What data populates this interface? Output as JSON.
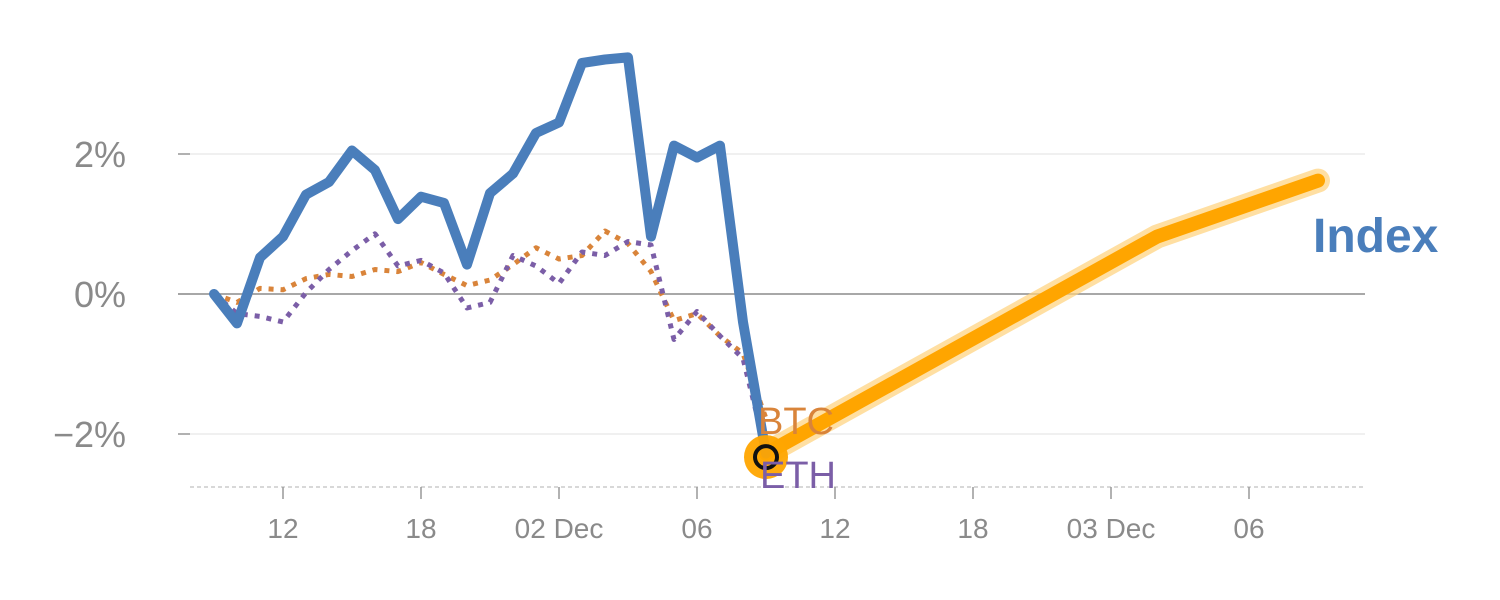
{
  "chart_data": {
    "type": "line",
    "title": "",
    "xlabel": "",
    "ylabel": "",
    "ylim": [
      -2.75,
      3.4
    ],
    "grid": true,
    "y_ticks": [
      {
        "value": 2,
        "label": "2%"
      },
      {
        "value": 0,
        "label": "0%"
      },
      {
        "value": -2,
        "label": "−2%"
      }
    ],
    "x_ticks": [
      {
        "index": 3,
        "label": "12"
      },
      {
        "index": 9,
        "label": "18"
      },
      {
        "index": 15,
        "label": "02 Dec"
      },
      {
        "index": 21,
        "label": "06"
      },
      {
        "index": 27,
        "label": "12"
      },
      {
        "index": 33,
        "label": "18"
      },
      {
        "index": 39,
        "label": "03 Dec"
      },
      {
        "index": 45,
        "label": "06"
      }
    ],
    "series": [
      {
        "name": "Index",
        "color": "#4a7ebb",
        "style": "solid",
        "x": [
          0,
          1,
          2,
          3,
          4,
          5,
          6,
          7,
          8,
          9,
          10,
          11,
          12,
          13,
          14,
          15,
          16,
          17,
          18,
          19,
          20,
          21,
          22,
          23,
          24
        ],
        "values": [
          0.0,
          -0.42,
          0.52,
          0.82,
          1.42,
          1.6,
          2.05,
          1.77,
          1.07,
          1.39,
          1.3,
          0.42,
          1.44,
          1.72,
          2.3,
          2.45,
          3.3,
          3.35,
          3.38,
          0.82,
          2.12,
          1.95,
          2.12,
          -0.4,
          -2.28
        ]
      },
      {
        "name": "BTC",
        "color": "#d9843a",
        "style": "dotted",
        "x": [
          0,
          1,
          2,
          3,
          4,
          5,
          6,
          7,
          8,
          9,
          10,
          11,
          12,
          13,
          14,
          15,
          16,
          17,
          18,
          19,
          20,
          21,
          22,
          23,
          24
        ],
        "values": [
          0.0,
          -0.12,
          0.08,
          0.06,
          0.22,
          0.28,
          0.25,
          0.35,
          0.32,
          0.45,
          0.28,
          0.12,
          0.2,
          0.42,
          0.66,
          0.5,
          0.55,
          0.9,
          0.72,
          0.32,
          -0.38,
          -0.28,
          -0.6,
          -0.85,
          -1.78
        ]
      },
      {
        "name": "ETH",
        "color": "#7b5ea7",
        "style": "dotted",
        "x": [
          0,
          1,
          2,
          3,
          4,
          5,
          6,
          7,
          8,
          9,
          10,
          11,
          12,
          13,
          14,
          15,
          16,
          17,
          18,
          19,
          20,
          21,
          22,
          23,
          24
        ],
        "values": [
          0.0,
          -0.28,
          -0.32,
          -0.4,
          0.02,
          0.35,
          0.62,
          0.86,
          0.4,
          0.48,
          0.3,
          -0.2,
          -0.12,
          0.55,
          0.4,
          0.15,
          0.6,
          0.55,
          0.75,
          0.7,
          -0.65,
          -0.25,
          -0.6,
          -0.92,
          -2.25
        ]
      },
      {
        "name": "",
        "color": "#ffa500",
        "style": "forecast",
        "x": [
          24,
          41,
          48
        ],
        "values": [
          -2.28,
          0.82,
          1.62
        ]
      }
    ],
    "marker": {
      "index": 24,
      "value": -2.33
    },
    "labels": {
      "btc": "BTC",
      "eth": "ETH",
      "index": "Index"
    }
  }
}
